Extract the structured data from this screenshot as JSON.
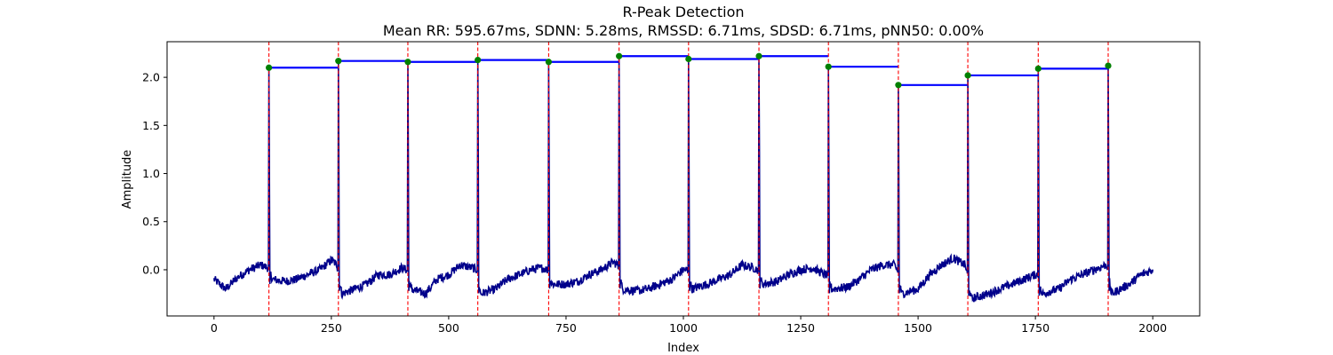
{
  "chart_data": {
    "type": "line",
    "title": "R-Peak Detection",
    "subtitle": "Mean RR: 595.67ms, SDNN: 5.28ms, RMSSD: 6.71ms, SDSD: 6.71ms, pNN50: 0.00%",
    "xlabel": "Index",
    "ylabel": "Amplitude",
    "xlim": [
      -100,
      2100
    ],
    "ylim": [
      -0.48,
      2.37
    ],
    "x_ticks": [
      0,
      250,
      500,
      750,
      1000,
      1250,
      1500,
      1750,
      2000
    ],
    "y_ticks": [
      0.0,
      0.5,
      1.0,
      1.5,
      2.0
    ],
    "y_tick_labels": [
      "0.0",
      "0.5",
      "1.0",
      "1.5",
      "2.0"
    ],
    "grid": false,
    "legend": "none",
    "signal_color": "#00008b",
    "peak_color": "#008000",
    "peak_line_color": "#ff0000",
    "rr_color": "#0000ff",
    "peaks": [
      {
        "x": 117,
        "y": 2.1
      },
      {
        "x": 265,
        "y": 2.17
      },
      {
        "x": 413,
        "y": 2.16
      },
      {
        "x": 562,
        "y": 2.18
      },
      {
        "x": 713,
        "y": 2.16
      },
      {
        "x": 863,
        "y": 2.22
      },
      {
        "x": 1011,
        "y": 2.19
      },
      {
        "x": 1161,
        "y": 2.22
      },
      {
        "x": 1309,
        "y": 2.11
      },
      {
        "x": 1458,
        "y": 1.92
      },
      {
        "x": 1606,
        "y": 2.02
      },
      {
        "x": 1756,
        "y": 2.09
      },
      {
        "x": 1905,
        "y": 2.12
      }
    ],
    "signal": {
      "x_start": 0,
      "x_end": 2000,
      "baseline": [
        [
          0,
          -0.1
        ],
        [
          25,
          -0.2
        ],
        [
          50,
          -0.08
        ],
        [
          75,
          0.0
        ],
        [
          100,
          0.05
        ],
        [
          115,
          0.02
        ],
        [
          125,
          -0.1
        ],
        [
          150,
          -0.12
        ],
        [
          175,
          -0.1
        ],
        [
          200,
          -0.05
        ],
        [
          225,
          0.0
        ],
        [
          250,
          0.1
        ],
        [
          262,
          0.05
        ],
        [
          272,
          -0.25
        ],
        [
          300,
          -0.2
        ],
        [
          325,
          -0.15
        ],
        [
          350,
          -0.05
        ],
        [
          375,
          -0.05
        ],
        [
          400,
          0.02
        ],
        [
          410,
          0.0
        ],
        [
          420,
          -0.2
        ],
        [
          450,
          -0.25
        ],
        [
          475,
          -0.1
        ],
        [
          500,
          -0.05
        ],
        [
          525,
          0.05
        ],
        [
          550,
          0.02
        ],
        [
          560,
          0.0
        ],
        [
          568,
          -0.25
        ],
        [
          600,
          -0.2
        ],
        [
          625,
          -0.1
        ],
        [
          650,
          -0.05
        ],
        [
          675,
          0.0
        ],
        [
          700,
          0.02
        ],
        [
          710,
          0.0
        ],
        [
          720,
          -0.15
        ],
        [
          750,
          -0.15
        ],
        [
          775,
          -0.12
        ],
        [
          800,
          -0.05
        ],
        [
          825,
          0.0
        ],
        [
          850,
          0.08
        ],
        [
          860,
          0.05
        ],
        [
          870,
          -0.2
        ],
        [
          900,
          -0.22
        ],
        [
          925,
          -0.2
        ],
        [
          950,
          -0.15
        ],
        [
          975,
          -0.1
        ],
        [
          1000,
          0.0
        ],
        [
          1008,
          0.0
        ],
        [
          1018,
          -0.2
        ],
        [
          1050,
          -0.15
        ],
        [
          1075,
          -0.1
        ],
        [
          1100,
          -0.05
        ],
        [
          1125,
          0.05
        ],
        [
          1150,
          0.02
        ],
        [
          1158,
          0.0
        ],
        [
          1168,
          -0.15
        ],
        [
          1200,
          -0.12
        ],
        [
          1225,
          -0.05
        ],
        [
          1250,
          0.0
        ],
        [
          1275,
          0.02
        ],
        [
          1300,
          -0.05
        ],
        [
          1306,
          -0.05
        ],
        [
          1316,
          -0.2
        ],
        [
          1350,
          -0.18
        ],
        [
          1375,
          -0.1
        ],
        [
          1400,
          0.0
        ],
        [
          1425,
          0.05
        ],
        [
          1450,
          0.05
        ],
        [
          1455,
          0.0
        ],
        [
          1465,
          -0.25
        ],
        [
          1500,
          -0.2
        ],
        [
          1525,
          -0.05
        ],
        [
          1550,
          0.05
        ],
        [
          1575,
          0.12
        ],
        [
          1600,
          0.05
        ],
        [
          1603,
          0.0
        ],
        [
          1613,
          -0.3
        ],
        [
          1650,
          -0.25
        ],
        [
          1675,
          -0.2
        ],
        [
          1700,
          -0.15
        ],
        [
          1725,
          -0.1
        ],
        [
          1750,
          -0.05
        ],
        [
          1753,
          -0.05
        ],
        [
          1763,
          -0.25
        ],
        [
          1800,
          -0.2
        ],
        [
          1825,
          -0.1
        ],
        [
          1850,
          -0.05
        ],
        [
          1875,
          0.0
        ],
        [
          1900,
          0.05
        ],
        [
          1902,
          0.05
        ],
        [
          1912,
          -0.25
        ],
        [
          1950,
          -0.15
        ],
        [
          1975,
          -0.05
        ],
        [
          2000,
          0.0
        ]
      ]
    }
  }
}
